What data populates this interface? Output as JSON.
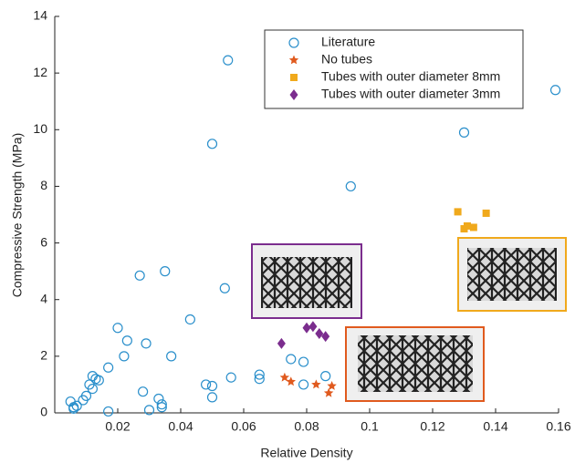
{
  "chart_data": {
    "type": "scatter",
    "x_label": "Relative Density",
    "y_label": "Compressive Strength (MPa)",
    "xlim": [
      0,
      0.16
    ],
    "ylim": [
      0,
      14
    ],
    "xticks": [
      0.02,
      0.04,
      0.06,
      0.08,
      0.1,
      0.12,
      0.14,
      0.16
    ],
    "yticks": [
      0,
      2,
      4,
      6,
      8,
      10,
      12,
      14
    ],
    "legend": "upper center",
    "series": [
      {
        "name": "Literature",
        "color": "#2a8fcb",
        "marker": "circle",
        "x": [
          0.005,
          0.006,
          0.006,
          0.007,
          0.009,
          0.01,
          0.011,
          0.012,
          0.012,
          0.013,
          0.014,
          0.017,
          0.017,
          0.02,
          0.022,
          0.023,
          0.027,
          0.028,
          0.029,
          0.03,
          0.033,
          0.034,
          0.034,
          0.035,
          0.037,
          0.043,
          0.048,
          0.05,
          0.05,
          0.05,
          0.054,
          0.055,
          0.056,
          0.065,
          0.065,
          0.075,
          0.079,
          0.079,
          0.086,
          0.094,
          0.13,
          0.159
        ],
        "values": [
          0.4,
          0.2,
          0.15,
          0.25,
          0.45,
          0.6,
          1.0,
          0.85,
          1.3,
          1.2,
          1.15,
          1.6,
          0.05,
          3.0,
          2.0,
          2.55,
          4.85,
          0.75,
          2.45,
          0.1,
          0.5,
          0.3,
          0.2,
          5.0,
          2.0,
          3.3,
          1.0,
          0.55,
          0.95,
          9.5,
          4.4,
          12.45,
          1.25,
          1.35,
          1.2,
          1.9,
          1.0,
          1.8,
          1.3,
          8.0,
          9.9,
          11.4
        ]
      },
      {
        "name": "No tubes",
        "color": "#e05a1e",
        "marker": "star",
        "x": [
          0.073,
          0.075,
          0.083,
          0.087,
          0.088
        ],
        "values": [
          1.25,
          1.1,
          1.0,
          0.7,
          0.95
        ]
      },
      {
        "name": "Tubes with outer diameter 8mm",
        "color": "#f0a91c",
        "marker": "square",
        "x": [
          0.128,
          0.13,
          0.131,
          0.133,
          0.137
        ],
        "values": [
          7.1,
          6.5,
          6.6,
          6.55,
          7.05
        ]
      },
      {
        "name": "Tubes with outer diameter 3mm",
        "color": "#7b2d8e",
        "marker": "diamond",
        "x": [
          0.072,
          0.08,
          0.082,
          0.084,
          0.086
        ],
        "values": [
          2.45,
          3.0,
          3.05,
          2.8,
          2.7
        ]
      }
    ]
  }
}
